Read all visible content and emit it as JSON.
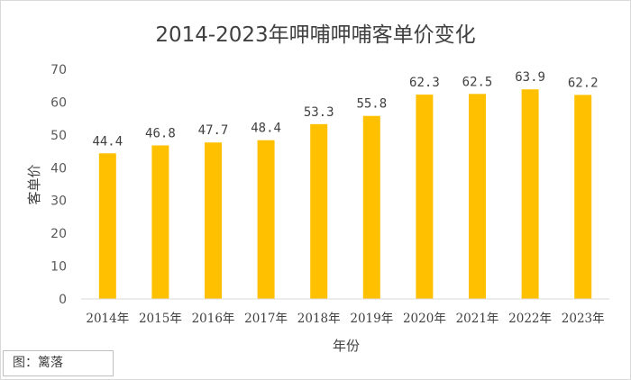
{
  "chart_data": {
    "type": "bar",
    "title": "2014-2023年呷哺呷哺客单价变化",
    "xlabel": "年份",
    "ylabel": "客单价",
    "ylim": [
      0,
      70
    ],
    "yticks": [
      0,
      10,
      20,
      30,
      40,
      50,
      60,
      70
    ],
    "categories": [
      "2014年",
      "2015年",
      "2016年",
      "2017年",
      "2018年",
      "2019年",
      "2020年",
      "2021年",
      "2022年",
      "2023年"
    ],
    "values": [
      44.4,
      46.8,
      47.7,
      48.4,
      53.3,
      55.8,
      62.3,
      62.5,
      63.9,
      62.2
    ],
    "data_labels": [
      "44.4",
      "46.8",
      "47.7",
      "48.4",
      "53.3",
      "55.8",
      "62.3",
      "62.5",
      "63.9",
      "62.2"
    ],
    "bar_color": "#FFC000",
    "grid": false,
    "legend": "none"
  },
  "credit": "图：篱落"
}
